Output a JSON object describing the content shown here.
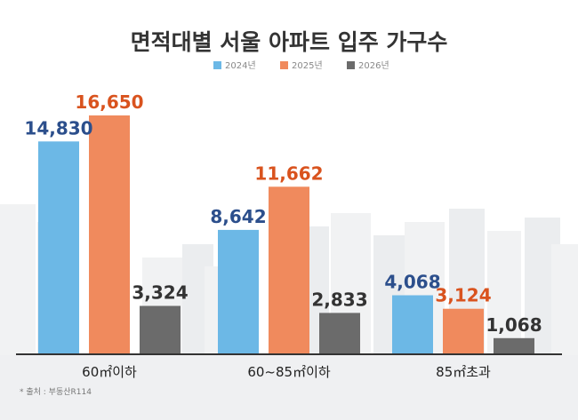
{
  "chart_data": {
    "type": "bar",
    "title": "면적대별 서울 아파트 입주 가구수",
    "categories": [
      "60㎡이하",
      "60~85㎡이하",
      "85㎡초과"
    ],
    "series": [
      {
        "name": "2024년",
        "color": "#6cb8e6",
        "label_color": "#2c4f8c",
        "values": [
          14830,
          8642,
          4068
        ],
        "labels": [
          "14,830",
          "8,642",
          "4,068"
        ]
      },
      {
        "name": "2025년",
        "color": "#f08a5d",
        "label_color": "#d9531e",
        "values": [
          16650,
          11662,
          3124
        ],
        "labels": [
          "16,650",
          "11,662",
          "3,124"
        ]
      },
      {
        "name": "2026년",
        "color": "#6b6b6b",
        "label_color": "#333333",
        "values": [
          3324,
          2833,
          1068
        ],
        "labels": [
          "3,324",
          "2,833",
          "1,068"
        ]
      }
    ],
    "ylim": [
      0,
      16650
    ],
    "legend_position": "top-center",
    "grid": false
  },
  "source_note": "* 출처 : 부동산R114"
}
